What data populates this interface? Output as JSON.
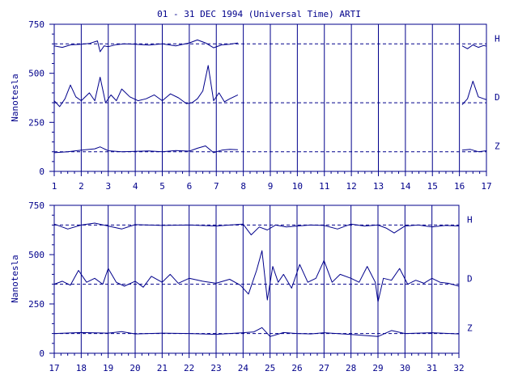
{
  "chart_data": {
    "type": "line",
    "title": "01 - 31 DEC 1994 (Universal Time) ARTI",
    "ylabel": "Nanotesla",
    "colors": {
      "line": "#00008b",
      "background": "#ffffff"
    },
    "panels": [
      {
        "xlim": [
          1,
          17
        ],
        "xticks": [
          "1",
          "2",
          "3",
          "4",
          "5",
          "6",
          "7",
          "8",
          "9",
          "10",
          "11",
          "12",
          "13",
          "14",
          "15",
          "16",
          "17"
        ],
        "ylim": [
          0,
          750
        ],
        "yticks": [
          "0",
          "250",
          "500",
          "750"
        ],
        "baselines": [
          650,
          350,
          100
        ],
        "components": [
          {
            "name": "H",
            "baseline": 650,
            "segments": [
              {
                "x": [
                  1.0,
                  1.3,
                  1.6,
                  2.0,
                  2.3,
                  2.6,
                  2.7,
                  2.85,
                  3.0,
                  3.3,
                  3.6,
                  4.0,
                  4.5,
                  5.0,
                  5.5,
                  6.0,
                  6.3,
                  6.6,
                  6.9,
                  7.2,
                  7.5,
                  7.8
                ],
                "y": [
                  640,
                  632,
                  645,
                  648,
                  652,
                  665,
                  610,
                  640,
                  636,
                  646,
                  650,
                  648,
                  644,
                  650,
                  640,
                  655,
                  670,
                  655,
                  630,
                  645,
                  648,
                  655
                ]
              },
              {
                "x": [
                  16.1,
                  16.3,
                  16.5,
                  16.7,
                  16.9,
                  17.0
                ],
                "y": [
                  640,
                  625,
                  645,
                  632,
                  642,
                  638
                ]
              }
            ]
          },
          {
            "name": "D",
            "baseline": 350,
            "segments": [
              {
                "x": [
                  1.0,
                  1.2,
                  1.4,
                  1.6,
                  1.8,
                  2.0,
                  2.3,
                  2.5,
                  2.7,
                  2.9,
                  3.1,
                  3.3,
                  3.5,
                  3.8,
                  4.1,
                  4.4,
                  4.7,
                  5.0,
                  5.3,
                  5.6,
                  5.9,
                  6.1,
                  6.3,
                  6.5,
                  6.7,
                  6.9,
                  7.1,
                  7.3,
                  7.5,
                  7.8
                ],
                "y": [
                  360,
                  330,
                  370,
                  440,
                  380,
                  360,
                  400,
                  360,
                  480,
                  350,
                  390,
                  360,
                  420,
                  380,
                  360,
                  370,
                  390,
                  360,
                  395,
                  375,
                  345,
                  350,
                  370,
                  410,
                  540,
                  360,
                  400,
                  355,
                  370,
                  390
                ]
              },
              {
                "x": [
                  16.1,
                  16.3,
                  16.5,
                  16.7,
                  16.9,
                  17.0
                ],
                "y": [
                  340,
                  370,
                  460,
                  380,
                  370,
                  365
                ]
              }
            ]
          },
          {
            "name": "Z",
            "baseline": 100,
            "segments": [
              {
                "x": [
                  1.0,
                  1.5,
                  2.0,
                  2.5,
                  2.7,
                  3.0,
                  3.5,
                  4.0,
                  4.5,
                  5.0,
                  5.5,
                  6.0,
                  6.3,
                  6.6,
                  6.9,
                  7.2,
                  7.5,
                  7.8
                ],
                "y": [
                  95,
                  100,
                  108,
                  115,
                  125,
                  105,
                  100,
                  102,
                  104,
                  100,
                  106,
                  103,
                  118,
                  130,
                  95,
                  108,
                  112,
                  110
                ]
              },
              {
                "x": [
                  16.1,
                  16.4,
                  16.7,
                  17.0
                ],
                "y": [
                  108,
                  112,
                  100,
                  105
                ]
              }
            ]
          }
        ]
      },
      {
        "xlim": [
          17,
          32
        ],
        "xticks": [
          "17",
          "18",
          "19",
          "20",
          "21",
          "22",
          "23",
          "24",
          "25",
          "26",
          "27",
          "28",
          "29",
          "30",
          "31",
          "32"
        ],
        "ylim": [
          0,
          750
        ],
        "yticks": [
          "0",
          "250",
          "500",
          "750"
        ],
        "baselines": [
          650,
          350,
          100
        ],
        "components": [
          {
            "name": "H",
            "baseline": 650,
            "segments": [
              {
                "x": [
                  17.0,
                  17.5,
                  18.0,
                  18.5,
                  19.0,
                  19.5,
                  20.0,
                  21.0,
                  22.0,
                  23.0,
                  23.5,
                  24.0,
                  24.3,
                  24.6,
                  24.9,
                  25.2,
                  25.6,
                  26.0,
                  26.5,
                  27.0,
                  27.5,
                  28.0,
                  28.5,
                  29.0,
                  29.3,
                  29.6,
                  30.0,
                  30.5,
                  31.0,
                  31.5,
                  32.0
                ],
                "y": [
                  655,
                  630,
                  650,
                  660,
                  645,
                  630,
                  652,
                  648,
                  650,
                  645,
                  650,
                  655,
                  600,
                  640,
                  625,
                  650,
                  640,
                  645,
                  650,
                  648,
                  630,
                  655,
                  645,
                  650,
                  635,
                  610,
                  645,
                  650,
                  640,
                  648,
                  645
                ]
              }
            ]
          },
          {
            "name": "D",
            "baseline": 350,
            "segments": [
              {
                "x": [
                  17.0,
                  17.3,
                  17.6,
                  17.9,
                  18.2,
                  18.5,
                  18.8,
                  19.0,
                  19.3,
                  19.6,
                  20.0,
                  20.3,
                  20.6,
                  21.0,
                  21.3,
                  21.6,
                  22.0,
                  22.5,
                  23.0,
                  23.5,
                  23.9,
                  24.2,
                  24.5,
                  24.7,
                  24.9,
                  25.1,
                  25.3,
                  25.5,
                  25.8,
                  26.1,
                  26.4,
                  26.7,
                  27.0,
                  27.3,
                  27.6,
                  28.0,
                  28.3,
                  28.6,
                  28.9,
                  29.0,
                  29.2,
                  29.5,
                  29.8,
                  30.1,
                  30.4,
                  30.7,
                  31.0,
                  31.3,
                  31.6,
                  32.0
                ],
                "y": [
                  350,
                  365,
                  345,
                  420,
                  360,
                  380,
                  350,
                  430,
                  360,
                  340,
                  365,
                  335,
                  390,
                  360,
                  400,
                  355,
                  380,
                  365,
                  355,
                  375,
                  345,
                  300,
                  420,
                  520,
                  270,
                  440,
                  360,
                  400,
                  330,
                  450,
                  360,
                  380,
                  470,
                  360,
                  400,
                  380,
                  360,
                  440,
                  360,
                  260,
                  380,
                  370,
                  430,
                  350,
                  370,
                  355,
                  380,
                  360,
                  355,
                  340
                ]
              }
            ]
          },
          {
            "name": "Z",
            "baseline": 100,
            "segments": [
              {
                "x": [
                  17.0,
                  18.0,
                  19.0,
                  19.5,
                  20.0,
                  21.0,
                  22.0,
                  23.0,
                  24.0,
                  24.4,
                  24.7,
                  25.0,
                  25.5,
                  26.0,
                  26.5,
                  27.0,
                  28.0,
                  29.0,
                  29.5,
                  30.0,
                  31.0,
                  32.0
                ],
                "y": [
                  100,
                  105,
                  102,
                  110,
                  98,
                  102,
                  100,
                  96,
                  104,
                  108,
                  130,
                  85,
                  105,
                  100,
                  98,
                  104,
                  95,
                  85,
                  115,
                  100,
                  104,
                  98
                ]
              }
            ]
          }
        ]
      }
    ]
  }
}
